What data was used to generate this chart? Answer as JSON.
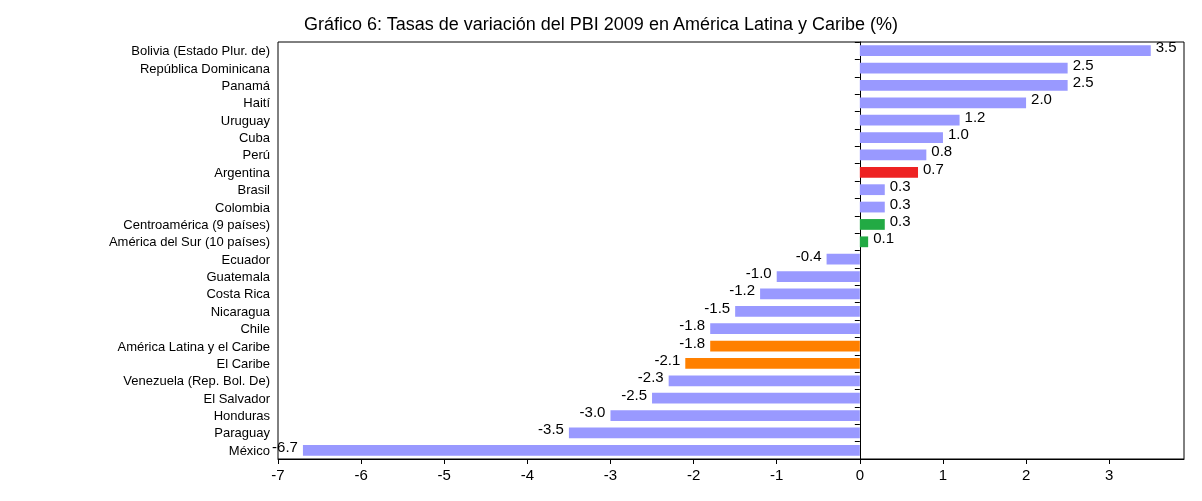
{
  "chart_data": {
    "type": "bar",
    "orientation": "horizontal",
    "title": "Gráfico 6: Tasas de variación del PBI 2009 en América Latina y Caribe (%)",
    "categories": [
      "Bolivia (Estado Plur. de)",
      "República Dominicana",
      "Panamá",
      "Haití",
      "Uruguay",
      "Cuba",
      "Perú",
      "Argentina",
      "Brasil",
      "Colombia",
      "Centroamérica (9 países)",
      "América del Sur (10 países)",
      "Ecuador",
      "Guatemala",
      "Costa Rica",
      "Nicaragua",
      "Chile",
      "América Latina y el Caribe",
      "El Caribe",
      "Venezuela (Rep. Bol. De)",
      "El Salvador",
      "Honduras",
      "Paraguay",
      "México"
    ],
    "values": [
      3.5,
      2.5,
      2.5,
      2.0,
      1.2,
      1.0,
      0.8,
      0.7,
      0.3,
      0.3,
      0.3,
      0.1,
      -0.4,
      -1.0,
      -1.2,
      -1.5,
      -1.8,
      -1.8,
      -2.1,
      -2.3,
      -2.5,
      -3.0,
      -3.5,
      -6.7
    ],
    "colors": [
      "#9999ff",
      "#9999ff",
      "#9999ff",
      "#9999ff",
      "#9999ff",
      "#9999ff",
      "#9999ff",
      "#ee2222",
      "#9999ff",
      "#9999ff",
      "#22aa44",
      "#22aa44",
      "#9999ff",
      "#9999ff",
      "#9999ff",
      "#9999ff",
      "#9999ff",
      "#ff8000",
      "#ff8000",
      "#9999ff",
      "#9999ff",
      "#9999ff",
      "#9999ff",
      "#9999ff"
    ],
    "value_labels": [
      "3.5",
      "2.5",
      "2.5",
      "2.0",
      "1.2",
      "1.0",
      "0.8",
      "0.7",
      "0.3",
      "0.3",
      "0.3",
      "0.1",
      "-0.4",
      "-1.0",
      "-1.2",
      "-1.5",
      "-1.8",
      "-1.8",
      "-2.1",
      "-2.3",
      "-2.5",
      "-3.0",
      "-3.5",
      "-6.7"
    ],
    "xlim": [
      -7,
      3.9
    ],
    "xticks": [
      -7,
      -6,
      -5,
      -4,
      -3,
      -2,
      -1,
      0,
      1,
      2,
      3
    ]
  }
}
